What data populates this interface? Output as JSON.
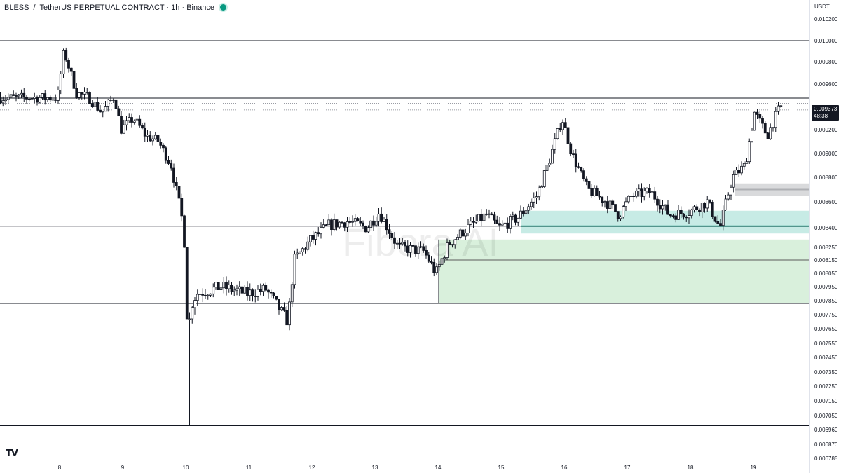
{
  "header": {
    "symbol": "BLESS",
    "sep": "/",
    "pair": "TetherUS PERPETUAL CONTRACT · 1h · Binance"
  },
  "axis": {
    "currency": "USDT"
  },
  "live_price": {
    "value": "0.009373",
    "countdown": "48:38"
  },
  "watermark": "Fibora AI",
  "logo": "TV",
  "colors": {
    "up": "#ffffff",
    "down": "#131722",
    "zone_green": "#b9e3c0",
    "zone_teal": "#5ec7b4",
    "zone_gray": "#c9cacd"
  },
  "chart_data": {
    "type": "candlestick",
    "timeframe": "1h",
    "ylim": [
      0.006785,
      0.0102
    ],
    "y_ticks": [
      "0.010200",
      "0.010000",
      "0.009800",
      "0.009600",
      "0.009200",
      "0.009000",
      "0.008800",
      "0.008600",
      "0.008400",
      "0.008250",
      "0.008150",
      "0.008050",
      "0.007950",
      "0.007850",
      "0.007750",
      "0.007650",
      "0.007550",
      "0.007450",
      "0.007350",
      "0.007250",
      "0.007150",
      "0.007050",
      "0.006960",
      "0.006870",
      "0.006785"
    ],
    "x_ticks": [
      "8",
      "9",
      "10",
      "11",
      "12",
      "13",
      "14",
      "15",
      "16",
      "17",
      "18",
      "19"
    ],
    "horizontal_levels": [
      0.01,
      0.009477,
      0.008412,
      0.00783,
      0.006985
    ],
    "zones": [
      {
        "name": "demand-zone-green",
        "x_from": "14",
        "y_from": 0.00783,
        "y_to": 0.00831
      },
      {
        "name": "zone-teal",
        "x_from": "15.3",
        "y_from": 0.008356,
        "y_to": 0.008531
      },
      {
        "name": "zone-gray",
        "x_from": "18.7",
        "y_from": 0.00865,
        "y_to": 0.00875
      }
    ],
    "price_anchors": [
      [
        "8",
        0.00948
      ],
      [
        "8.1",
        0.0099
      ],
      [
        "8.3",
        0.00952
      ],
      [
        "8.5",
        0.00948
      ],
      [
        "8.7",
        0.00935
      ],
      [
        "8.9",
        0.0095
      ],
      [
        "9",
        0.0092
      ],
      [
        "9.2",
        0.0093
      ],
      [
        "9.4",
        0.00915
      ],
      [
        "9.6",
        0.0091
      ],
      [
        "9.8",
        0.0089
      ],
      [
        "10",
        0.0084
      ],
      [
        "10.05",
        0.00775
      ],
      [
        "10.2",
        0.0079
      ],
      [
        "10.6",
        0.00795
      ],
      [
        "11",
        0.0079
      ],
      [
        "11.3",
        0.00793
      ],
      [
        "11.5",
        0.0078
      ],
      [
        "11.65",
        0.0077
      ],
      [
        "11.75",
        0.00815
      ],
      [
        "12",
        0.0083
      ],
      [
        "12.3",
        0.00842
      ],
      [
        "12.6",
        0.00845
      ],
      [
        "12.9",
        0.0084
      ],
      [
        "13.1",
        0.00852
      ],
      [
        "13.4",
        0.00825
      ],
      [
        "13.8",
        0.00822
      ],
      [
        "14",
        0.00805
      ],
      [
        "14.2",
        0.00828
      ],
      [
        "14.5",
        0.0084
      ],
      [
        "14.8",
        0.0085
      ],
      [
        "15",
        0.0084
      ],
      [
        "15.3",
        0.00848
      ],
      [
        "15.6",
        0.00865
      ],
      [
        "15.8",
        0.00895
      ],
      [
        "16",
        0.0093
      ],
      [
        "16.15",
        0.009
      ],
      [
        "16.4",
        0.0087
      ],
      [
        "16.7",
        0.0086
      ],
      [
        "16.9",
        0.0085
      ],
      [
        "17.1",
        0.00865
      ],
      [
        "17.4",
        0.00868
      ],
      [
        "17.7",
        0.0085
      ],
      [
        "18",
        0.00852
      ],
      [
        "18.3",
        0.0086
      ],
      [
        "18.5",
        0.0084
      ],
      [
        "18.7",
        0.0088
      ],
      [
        "18.9",
        0.0089
      ],
      [
        "19.05",
        0.00935
      ],
      [
        "19.25",
        0.00915
      ],
      [
        "19.45",
        0.0094
      ]
    ]
  }
}
